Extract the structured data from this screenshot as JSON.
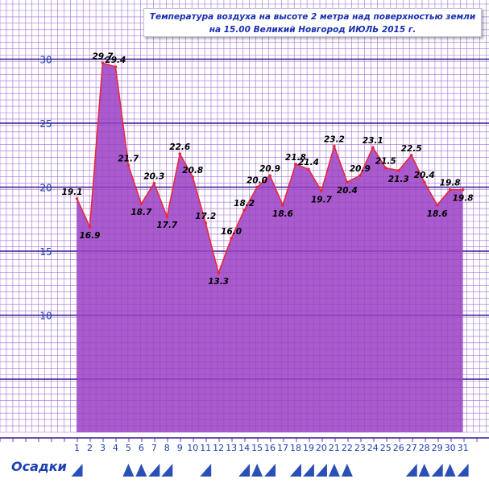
{
  "title": {
    "line1": "Температура воздуха на высоте 2 метра над поверхностью земли",
    "line2": "на 15.00 Великий Новгород ИЮЛЬ 2015 г."
  },
  "precipitation_label": "Осадки",
  "colors": {
    "grid": "#a070d8",
    "grid_major": "#3a1890",
    "fill": "#9b3fc4",
    "line": "#e8283c",
    "axis_text": "#1a3fb0",
    "precip_marker": "#2a50b8"
  },
  "chart_data": {
    "type": "area",
    "x": [
      1,
      2,
      3,
      4,
      5,
      6,
      7,
      8,
      9,
      10,
      11,
      12,
      13,
      14,
      15,
      16,
      17,
      18,
      19,
      20,
      21,
      22,
      23,
      24,
      25,
      26,
      27,
      28,
      29,
      30,
      31
    ],
    "x_tick_labels": [
      "1",
      "2",
      "3",
      "4",
      "5",
      "6",
      "7",
      "8",
      "9",
      "10",
      "11",
      "12",
      "13",
      "14",
      "15",
      "16",
      "17",
      "18",
      "19",
      "20",
      "21",
      "22",
      "23",
      "24",
      "25",
      "26",
      "27",
      "28",
      "29",
      "30",
      "31"
    ],
    "values": [
      19.1,
      16.9,
      29.7,
      29.4,
      21.7,
      18.7,
      20.3,
      17.7,
      22.6,
      20.8,
      17.2,
      13.3,
      16.0,
      18.2,
      20.0,
      20.9,
      18.6,
      21.8,
      21.4,
      19.7,
      23.2,
      20.4,
      20.9,
      23.1,
      21.5,
      21.3,
      22.5,
      20.4,
      18.6,
      19.8,
      19.8
    ],
    "data_labels": [
      "19.1",
      "16.9",
      "29.7",
      "29.4",
      "21.7",
      "18.7",
      "20.3",
      "17.7",
      "22.6",
      "20.8",
      "17.2",
      "13.3",
      "16.0",
      "18.2",
      "20.0",
      "20.9",
      "18.6",
      "21.8",
      "21.4",
      "19.7",
      "23.2",
      "20.4",
      "20.9",
      "23.1",
      "21.5",
      "21.3",
      "22.5",
      "20.4",
      "18.6",
      "19.8",
      "19.8"
    ],
    "y_ticks": [
      10,
      15,
      20,
      25,
      30
    ],
    "y_tick_labels": [
      "10",
      "15",
      "20",
      "25",
      "30"
    ],
    "ylim": [
      1.5,
      32
    ],
    "xlim": [
      0.5,
      31.5
    ],
    "grid": true,
    "precipitation": {
      "days_triangle": [
        1,
        7,
        8,
        11,
        14,
        16,
        18,
        19,
        20,
        27,
        29,
        31
      ],
      "days_box": [
        5,
        6,
        15,
        21,
        22,
        28,
        30
      ]
    }
  }
}
